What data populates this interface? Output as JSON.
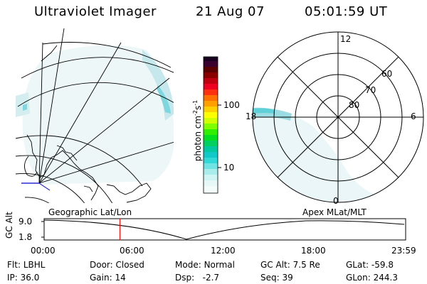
{
  "header": {
    "instrument": "Ultraviolet Imager",
    "date": "21 Aug 07",
    "time": "05:01:59 UT"
  },
  "colorbar": {
    "units": "photon cm^-2 s^-1",
    "ticks": [
      "100",
      "10"
    ]
  },
  "polar_plot": {
    "mlt_labels": [
      "12",
      "18",
      "6",
      "0"
    ],
    "mlat_labels": [
      "60",
      "70",
      "80"
    ]
  },
  "timeline": {
    "left_label": "Geographic Lat/Lon",
    "right_label": "Apex MLat/MLT",
    "y_axis_title": "GC Alt",
    "y_ticks": [
      "9.0",
      "1.8"
    ],
    "x_ticks": [
      "00:00",
      "06:00",
      "12:00",
      "18:00",
      "23:59"
    ],
    "current_time_fraction": 0.2097
  },
  "footer": {
    "row1": [
      {
        "key": "Flt:",
        "value": "LBHL"
      },
      {
        "key": "Door:",
        "value": "Closed"
      },
      {
        "key": "Mode:",
        "value": "Normal"
      },
      {
        "key": "GC Alt:",
        "value": "7.5 Re"
      },
      {
        "key": "GLat:",
        "value": "-59.8"
      }
    ],
    "row2": [
      {
        "key": "IP:",
        "value": "36.0"
      },
      {
        "key": "Gain:",
        "value": "14"
      },
      {
        "key": "Dsp:",
        "value": "-2.7"
      },
      {
        "key": "Seq:",
        "value": "39"
      },
      {
        "key": "GLon:",
        "value": "244.3"
      }
    ]
  },
  "colors": {
    "aurora_dim": "#d8eef0",
    "aurora_mid": "#a8e0e4",
    "aurora_bright": "#40d0d8",
    "current_time_marker": "#ff0000",
    "coast": "#0000aa"
  }
}
